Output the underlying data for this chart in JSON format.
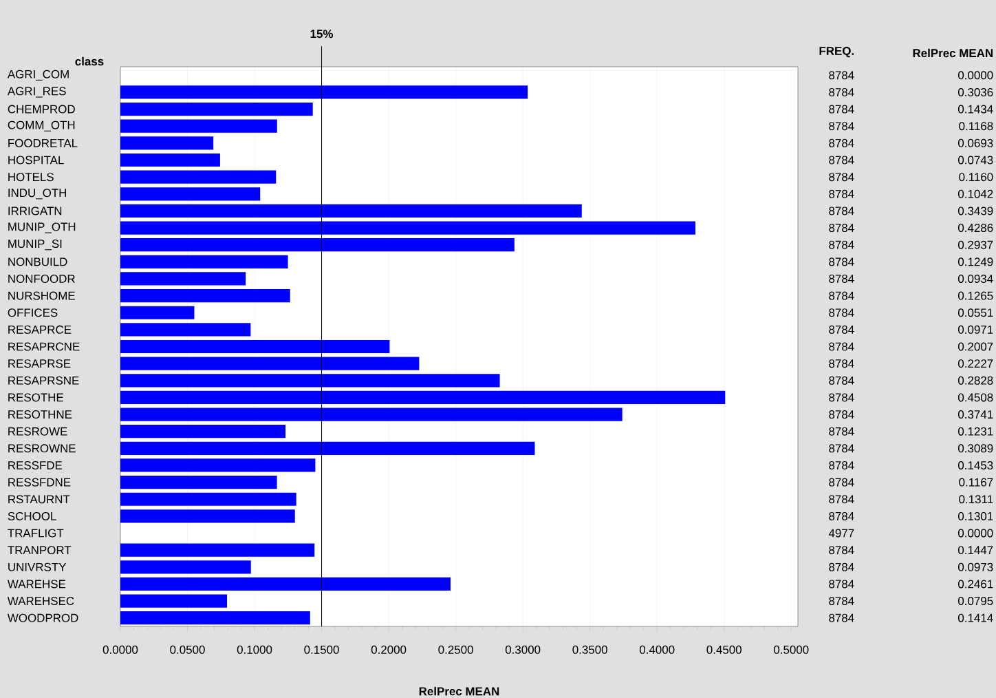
{
  "chart_data": {
    "type": "bar",
    "orientation": "horizontal",
    "ylabel": "class",
    "xlabel": "RelPrec MEAN",
    "categories": [
      "AGRI_COM",
      "AGRI_RES",
      "CHEMPROD",
      "COMM_OTH",
      "FOODRETAL",
      "HOSPITAL",
      "HOTELS",
      "INDU_OTH",
      "IRRIGATN",
      "MUNIP_OTH",
      "MUNIP_SI",
      "NONBUILD",
      "NONFOODR",
      "NURSHOME",
      "OFFICES",
      "RESAPRCE",
      "RESAPRCNE",
      "RESAPRSE",
      "RESAPRSNE",
      "RESOTHE",
      "RESOTHNE",
      "RESROWE",
      "RESROWNE",
      "RESSFDE",
      "RESSFDNE",
      "RSTAURNT",
      "SCHOOL",
      "TRAFLIGT",
      "TRANPORT",
      "UNIVRSTY",
      "WAREHSE",
      "WAREHSEC",
      "WOODPROD"
    ],
    "values": [
      0.0,
      0.3036,
      0.1434,
      0.1168,
      0.0693,
      0.0743,
      0.116,
      0.1042,
      0.3439,
      0.4286,
      0.2937,
      0.1249,
      0.0934,
      0.1265,
      0.0551,
      0.0971,
      0.2007,
      0.2227,
      0.2828,
      0.4508,
      0.3741,
      0.1231,
      0.3089,
      0.1453,
      0.1167,
      0.1311,
      0.1301,
      0.0,
      0.1447,
      0.0973,
      0.2461,
      0.0795,
      0.1414
    ],
    "value_labels": [
      "0.0000",
      "0.3036",
      "0.1434",
      "0.1168",
      "0.0693",
      "0.0743",
      "0.1160",
      "0.1042",
      "0.3439",
      "0.4286",
      "0.2937",
      "0.1249",
      "0.0934",
      "0.1265",
      "0.0551",
      "0.0971",
      "0.2007",
      "0.2227",
      "0.2828",
      "0.4508",
      "0.3741",
      "0.1231",
      "0.3089",
      "0.1453",
      "0.1167",
      "0.1311",
      "0.1301",
      "0.0000",
      "0.1447",
      "0.0973",
      "0.2461",
      "0.0795",
      "0.1414"
    ],
    "annotations": [
      "FREQ.",
      "RelPrec MEAN",
      "8784",
      "8784",
      "8784",
      "8784",
      "8784",
      "8784",
      "8784",
      "8784",
      "8784",
      "8784",
      "8784",
      "8784",
      "8784",
      "8784",
      "8784",
      "8784",
      "8784",
      "8784",
      "8784",
      "8784",
      "8784",
      "8784",
      "8784",
      "8784",
      "8784",
      "8784",
      "8784",
      "4977",
      "8784",
      "8784",
      "8784",
      "8784",
      "8784"
    ],
    "color": "#0000ff",
    "xlim": [
      0,
      0.505
    ],
    "xticks": [
      {
        "value": 0,
        "label": "0.0000"
      },
      {
        "value": 0.05,
        "label": "0.0500"
      },
      {
        "value": 0.1,
        "label": "0.1000"
      },
      {
        "value": 0.15,
        "label": "0.1500"
      },
      {
        "value": 0.2,
        "label": "0.2000"
      },
      {
        "value": 0.25,
        "label": "0.2500"
      },
      {
        "value": 0.3,
        "label": "0.3000"
      },
      {
        "value": 0.35,
        "label": "0.3500"
      },
      {
        "value": 0.4,
        "label": "0.4000"
      },
      {
        "value": 0.45,
        "label": "0.4500"
      },
      {
        "value": 0.5,
        "label": "0.5000"
      }
    ],
    "grid": "x",
    "ref_lines": [
      {
        "axis": "x",
        "value": 0.15,
        "label": "15%",
        "color": "#000000"
      }
    ]
  }
}
